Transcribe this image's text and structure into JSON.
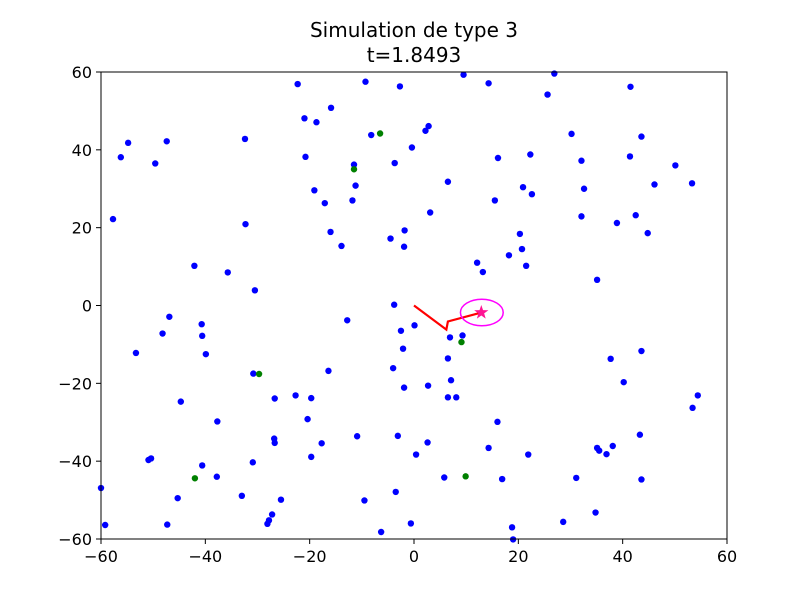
{
  "chart_data": {
    "type": "scatter",
    "title": "Simulation de type 3",
    "subtitle": "t=1.8493",
    "xlabel": "",
    "ylabel": "",
    "xlim": [
      -60,
      60
    ],
    "ylim": [
      -60,
      60
    ],
    "xticks": [
      -60,
      -40,
      -20,
      0,
      20,
      40,
      60
    ],
    "yticks": [
      -60,
      -40,
      -20,
      0,
      20,
      40,
      60
    ],
    "xtick_labels": [
      "−60",
      "−40",
      "−20",
      "0",
      "20",
      "40",
      "60"
    ],
    "ytick_labels": [
      "−60",
      "−40",
      "−20",
      "0",
      "20",
      "40",
      "60"
    ],
    "grid": false,
    "colors": {
      "blue_points": "#0000ff",
      "green_points": "#008000",
      "path": "#ff0000",
      "marker": "#ff1493",
      "circle": "#ff00ff"
    },
    "series": [
      {
        "color": "#0000ff",
        "points": [
          [
            -9.3,
            57.5
          ],
          [
            -2.7,
            56.3
          ],
          [
            -22.3,
            56.9
          ],
          [
            9.5,
            59.3
          ],
          [
            14.3,
            57.1
          ],
          [
            26.9,
            59.6
          ],
          [
            25.6,
            54.2
          ],
          [
            41.5,
            56.2
          ],
          [
            -15.9,
            50.8
          ],
          [
            -18.7,
            47.1
          ],
          [
            -21,
            48.1
          ],
          [
            -54.8,
            41.8
          ],
          [
            -47.4,
            42.2
          ],
          [
            -32.4,
            42.8
          ],
          [
            -8.2,
            43.8
          ],
          [
            2.2,
            44.9
          ],
          [
            2.8,
            46.1
          ],
          [
            43.6,
            43.4
          ],
          [
            30.2,
            44.1
          ],
          [
            -56.2,
            38.1
          ],
          [
            -49.6,
            36.5
          ],
          [
            -20.8,
            38.2
          ],
          [
            -11.5,
            36.2
          ],
          [
            -3.7,
            36.6
          ],
          [
            -0.4,
            40.6
          ],
          [
            16.1,
            37.9
          ],
          [
            22.3,
            38.8
          ],
          [
            41.4,
            38.3
          ],
          [
            32.1,
            37.2
          ],
          [
            50.1,
            36
          ],
          [
            53.3,
            31.4
          ],
          [
            46.1,
            31.1
          ],
          [
            -19.1,
            29.6
          ],
          [
            -11.2,
            30.8
          ],
          [
            -17.1,
            26.3
          ],
          [
            -11.8,
            27
          ],
          [
            6.5,
            31.8
          ],
          [
            15.5,
            27
          ],
          [
            20.9,
            30.4
          ],
          [
            22.6,
            28.6
          ],
          [
            32.6,
            30
          ],
          [
            -57.7,
            22.2
          ],
          [
            -32.3,
            20.9
          ],
          [
            -16,
            18.9
          ],
          [
            -13.9,
            15.3
          ],
          [
            -4.5,
            17.2
          ],
          [
            -1.8,
            19.3
          ],
          [
            3.1,
            23.9
          ],
          [
            20.3,
            18.4
          ],
          [
            32.1,
            22.9
          ],
          [
            38.9,
            21.2
          ],
          [
            42.5,
            23.2
          ],
          [
            44.8,
            18.6
          ],
          [
            -1.9,
            15.1
          ],
          [
            20.7,
            14.5
          ],
          [
            18.2,
            12.9
          ],
          [
            -42.1,
            10.2
          ],
          [
            -35.7,
            8.5
          ],
          [
            -30.5,
            3.9
          ],
          [
            12.1,
            11
          ],
          [
            13.2,
            8.6
          ],
          [
            21.5,
            10.2
          ],
          [
            35.1,
            6.6
          ],
          [
            -46.9,
            -2.9
          ],
          [
            -40.7,
            -4.8
          ],
          [
            -48.2,
            -7.2
          ],
          [
            -40.6,
            -7.8
          ],
          [
            -53.3,
            -12.2
          ],
          [
            -39.9,
            -12.5
          ],
          [
            -12.8,
            -3.8
          ],
          [
            -3.8,
            0.2
          ],
          [
            0.1,
            -5.1
          ],
          [
            -2.5,
            -6.5
          ],
          [
            -2.1,
            -11.1
          ],
          [
            6.9,
            -8.2
          ],
          [
            9.3,
            -7.7
          ],
          [
            -30.8,
            -17.5
          ],
          [
            -16.4,
            -16.8
          ],
          [
            -4,
            -16.1
          ],
          [
            6.5,
            -13.6
          ],
          [
            37.7,
            -13.7
          ],
          [
            43.6,
            -11.7
          ],
          [
            -1.9,
            -21.1
          ],
          [
            2.7,
            -20.6
          ],
          [
            7.1,
            -19.2
          ],
          [
            40.2,
            -19.7
          ],
          [
            -44.7,
            -24.7
          ],
          [
            -26.7,
            -23.9
          ],
          [
            -22.7,
            -23.1
          ],
          [
            -19.7,
            -23.8
          ],
          [
            6.5,
            -23.6
          ],
          [
            8.1,
            -23.6
          ],
          [
            54.4,
            -23.1
          ],
          [
            53.4,
            -26.3
          ],
          [
            -37.7,
            -29.8
          ],
          [
            -20.4,
            -29.2
          ],
          [
            16,
            -29.9
          ],
          [
            -26.8,
            -34.2
          ],
          [
            -26.7,
            -35.3
          ],
          [
            -17.7,
            -35.4
          ],
          [
            -10.9,
            -33.6
          ],
          [
            -3.1,
            -33.5
          ],
          [
            2.6,
            -35.2
          ],
          [
            14.3,
            -36.6
          ],
          [
            35.1,
            -36.6
          ],
          [
            35.5,
            -37.3
          ],
          [
            38.1,
            -36.1
          ],
          [
            43.3,
            -33.2
          ],
          [
            -50.9,
            -39.7
          ],
          [
            -50.4,
            -39.3
          ],
          [
            -30.9,
            -40.3
          ],
          [
            -19.7,
            -38.9
          ],
          [
            0.4,
            -38.3
          ],
          [
            21.9,
            -38.3
          ],
          [
            36.9,
            -38.2
          ],
          [
            -40.6,
            -41.1
          ],
          [
            -37.8,
            -44
          ],
          [
            5.8,
            -44.2
          ],
          [
            16.9,
            -44.6
          ],
          [
            31.1,
            -44.3
          ],
          [
            43.6,
            -44.7
          ],
          [
            -60,
            -46.9
          ],
          [
            -45.3,
            -49.5
          ],
          [
            -33,
            -48.9
          ],
          [
            -25.5,
            -49.9
          ],
          [
            -9.5,
            -50.1
          ],
          [
            -3.5,
            -47.9
          ],
          [
            34.8,
            -53.2
          ],
          [
            -27.2,
            -53.7
          ],
          [
            -27.8,
            -55.2
          ],
          [
            -28.1,
            -56.1
          ],
          [
            -59.2,
            -56.4
          ],
          [
            -47.3,
            -56.3
          ],
          [
            -0.6,
            -56
          ],
          [
            28.6,
            -55.6
          ],
          [
            18.8,
            -57
          ],
          [
            -6.3,
            -58.2
          ],
          [
            19,
            -60.1
          ]
        ]
      },
      {
        "color": "#008000",
        "points": [
          [
            -6.5,
            44.2
          ],
          [
            -11.5,
            35
          ],
          [
            9.1,
            -9.4
          ],
          [
            -29.7,
            -17.6
          ],
          [
            -42,
            -44.4
          ],
          [
            9.9,
            -43.9
          ]
        ]
      }
    ],
    "path": [
      [
        0,
        0
      ],
      [
        6.2,
        -6.2
      ],
      [
        6.5,
        -4.1
      ],
      [
        12.9,
        -1.8
      ]
    ],
    "marker": {
      "shape": "star",
      "x": 12.9,
      "y": -1.8
    },
    "circle": {
      "cx": 13,
      "cy": -1.8,
      "rx": 4.1,
      "ry": 3.4
    }
  }
}
